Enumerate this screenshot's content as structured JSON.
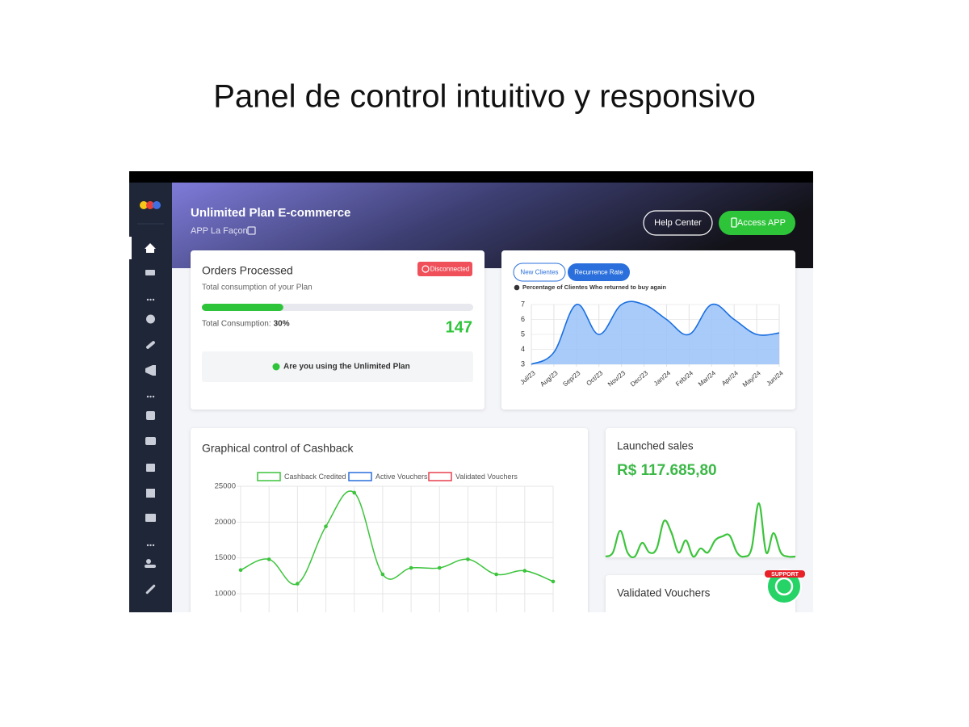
{
  "page_title": "Panel de control intuitivo y responsivo",
  "header": {
    "title": "Unlimited Plan E-commerce",
    "subtitle": "APP La Façon",
    "help_button": "Help Center",
    "app_button": "Access APP"
  },
  "orders_card": {
    "title": "Orders Processed",
    "subtitle": "Total consumption of your Plan",
    "status": "Disconnected",
    "consumption_label": "Total Consumption:",
    "consumption_percent": 30,
    "consumption_percent_label": "30%",
    "count": 147,
    "notice": "Are you using the Unlimited Plan"
  },
  "recurrence_card": {
    "tabs": [
      "New Clientes",
      "Recurrence Rate"
    ],
    "caption": "Percentage of Clientes Who returned to buy again",
    "chart_data": {
      "type": "area",
      "categories": [
        "Jul/23",
        "Aug/23",
        "Sep/23",
        "Oct/23",
        "Nov/23",
        "Dec/23",
        "Jan/24",
        "Feb/24",
        "Mar/24",
        "Apr/24",
        "May/24",
        "Jun/24"
      ],
      "values": [
        3,
        3.8,
        7,
        5,
        7,
        7,
        6,
        5,
        7,
        6,
        5,
        5.1
      ],
      "color": "#1a6ee0",
      "ylim": [
        3,
        7
      ],
      "yticks": [
        3,
        4,
        5,
        6,
        7
      ],
      "grid": true
    }
  },
  "cashback_card": {
    "title": "Graphical control of Cashback",
    "chart_data": {
      "type": "line",
      "series": [
        {
          "name": "Cashback Credited",
          "color": "#3cc43c",
          "values": [
            13300,
            14800,
            11400,
            19400,
            24100,
            12700,
            13600,
            13600,
            14800,
            12700,
            13200,
            11700
          ]
        },
        {
          "name": "Active Vouchers",
          "color": "#2a6fdb"
        },
        {
          "name": "Validated Vouchers",
          "color": "#e8414f"
        }
      ],
      "ylim": [
        5000,
        25000
      ],
      "yticks": [
        10000,
        15000,
        20000,
        25000
      ],
      "grid": true
    }
  },
  "sales_card": {
    "title": "Launched sales",
    "amount": "R$ 117.685,80",
    "chart_data": {
      "type": "line",
      "values": [
        0,
        5,
        32,
        5,
        0,
        17,
        5,
        10,
        44,
        30,
        5,
        20,
        0,
        10,
        5,
        20,
        25,
        26,
        5,
        0,
        10,
        66,
        5,
        29,
        5,
        0,
        0
      ],
      "color": "#3cc43c",
      "ylim": [
        0,
        70
      ]
    }
  },
  "vouchers_card": {
    "title": "Validated Vouchers"
  },
  "support_label": "SUPPORT"
}
